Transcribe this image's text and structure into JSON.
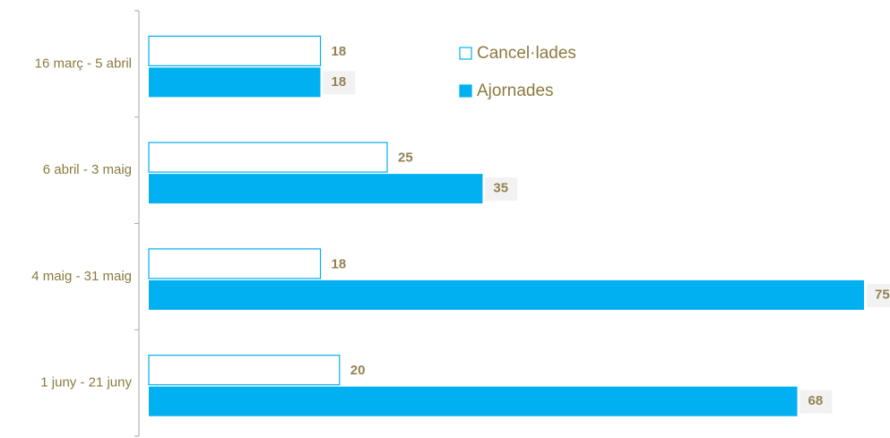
{
  "chart_data": {
    "type": "hbar",
    "categories": [
      "16 març - 5 abril",
      "6 abril - 3 maig",
      "4 maig - 31 maig",
      "1 juny - 21 juny"
    ],
    "series": [
      {
        "name": "Cancel·lades",
        "color": "#00b0f0",
        "fill": "#ffffff",
        "values": [
          18,
          25,
          18,
          20
        ]
      },
      {
        "name": "Ajornades",
        "color": "#00b0f0",
        "fill": "#00b0f0",
        "values": [
          18,
          35,
          75,
          68
        ]
      }
    ],
    "legend": "top-right"
  }
}
